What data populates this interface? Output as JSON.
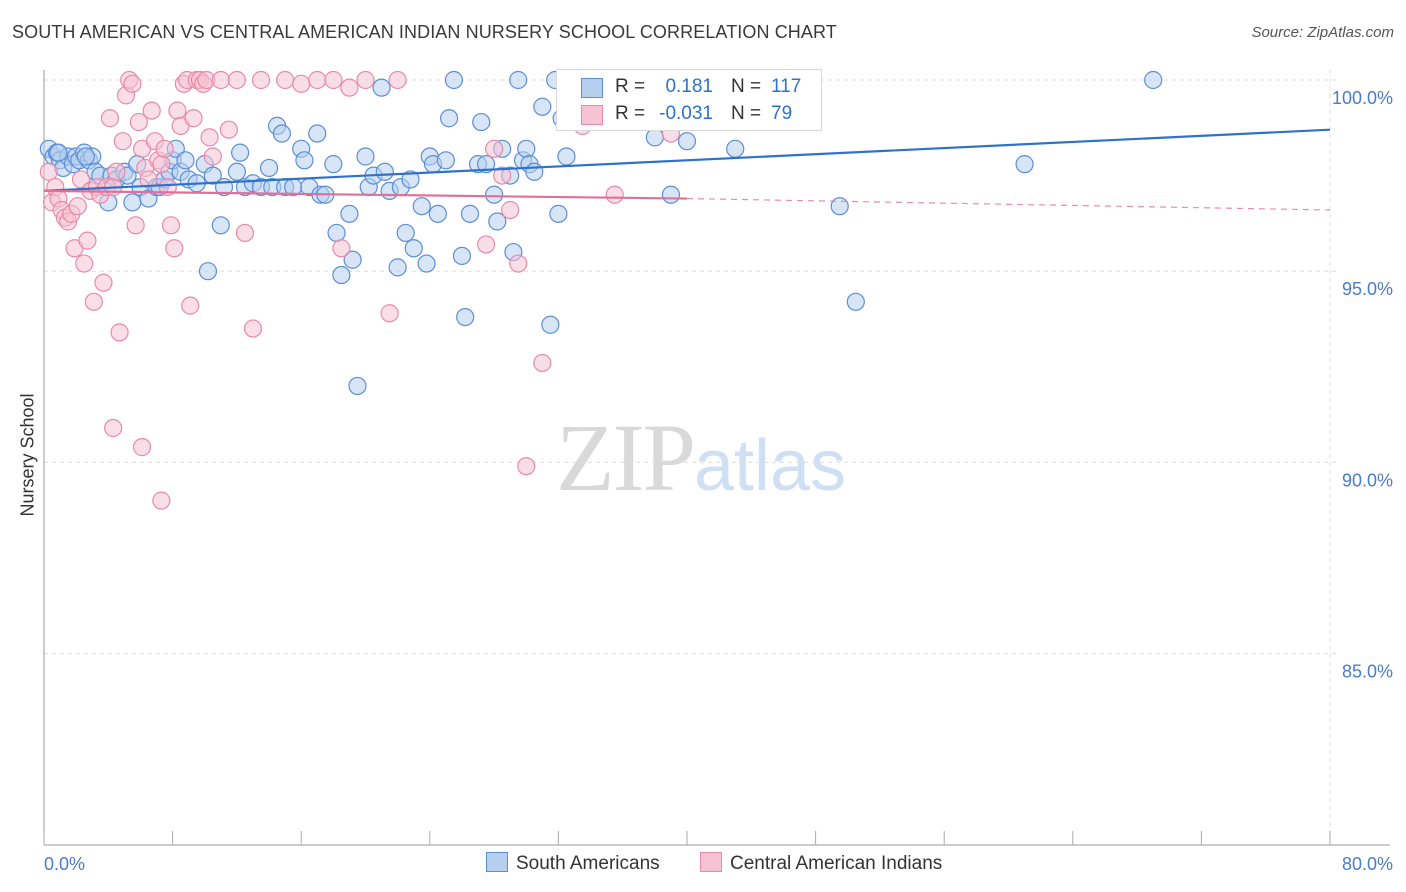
{
  "title": "SOUTH AMERICAN VS CENTRAL AMERICAN INDIAN NURSERY SCHOOL CORRELATION CHART",
  "source": "Source: ZipAtlas.com",
  "watermark": {
    "zip": "ZIP",
    "atlas": "atlas"
  },
  "colors": {
    "blue": "#5b8fd6",
    "blue_fill": "#b7cfee",
    "blue_line": "#2f72c9",
    "pink": "#e88aa8",
    "pink_fill": "#f5c3d3",
    "pink_line": "#e0709a",
    "axis_text": "#4a7cc9",
    "grid": "#dddddd"
  },
  "legend": {
    "rows": [
      {
        "r_label": "R =",
        "r_value": "0.181",
        "n_label": "N =",
        "n_value": "117"
      },
      {
        "r_label": "R =",
        "r_value": "-0.031",
        "n_label": "N =",
        "n_value": "79"
      }
    ]
  },
  "bottom_legend": [
    "South Americans",
    "Central American Indians"
  ],
  "chart_data": {
    "type": "scatter",
    "title": "SOUTH AMERICAN VS CENTRAL AMERICAN INDIAN NURSERY SCHOOL CORRELATION CHART",
    "ylabel": "Nursery School",
    "xlabel": "",
    "xlim": [
      0,
      80
    ],
    "ylim": [
      80,
      100.8
    ],
    "x_tick_labels": [
      "0.0%",
      "80.0%"
    ],
    "y_ticks": [
      85,
      90,
      95,
      100
    ],
    "y_tick_labels": [
      "85.0%",
      "90.0%",
      "95.0%",
      "100.0%"
    ],
    "grid": true,
    "series": [
      {
        "name": "South Americans",
        "color": "blue",
        "trend": {
          "x": [
            0,
            80
          ],
          "y": [
            97.1,
            98.7
          ]
        },
        "points": [
          [
            0.3,
            98.2
          ],
          [
            0.6,
            98.0
          ],
          [
            0.8,
            98.1
          ],
          [
            1.0,
            97.9
          ],
          [
            1.2,
            97.7
          ],
          [
            1.5,
            98.0
          ],
          [
            1.8,
            97.8
          ],
          [
            2.0,
            98.0
          ],
          [
            2.2,
            97.9
          ],
          [
            2.5,
            98.1
          ],
          [
            2.8,
            97.9
          ],
          [
            3.0,
            98.0
          ],
          [
            3.2,
            97.6
          ],
          [
            3.5,
            97.5
          ],
          [
            4.0,
            96.8
          ],
          [
            4.2,
            97.5
          ],
          [
            4.5,
            97.4
          ],
          [
            5.0,
            97.6
          ],
          [
            5.2,
            97.5
          ],
          [
            5.5,
            96.8
          ],
          [
            5.8,
            97.8
          ],
          [
            6.0,
            97.2
          ],
          [
            6.5,
            96.9
          ],
          [
            7.0,
            97.2
          ],
          [
            7.2,
            97.2
          ],
          [
            7.5,
            97.4
          ],
          [
            7.8,
            97.6
          ],
          [
            8.0,
            97.9
          ],
          [
            8.2,
            98.2
          ],
          [
            8.5,
            97.6
          ],
          [
            8.8,
            97.9
          ],
          [
            9.0,
            97.4
          ],
          [
            9.5,
            97.3
          ],
          [
            10.0,
            97.8
          ],
          [
            10.2,
            95.0
          ],
          [
            10.5,
            97.5
          ],
          [
            11.0,
            96.2
          ],
          [
            11.2,
            97.2
          ],
          [
            12.0,
            97.6
          ],
          [
            12.2,
            98.1
          ],
          [
            12.5,
            97.2
          ],
          [
            13.0,
            97.3
          ],
          [
            13.5,
            97.2
          ],
          [
            14.0,
            97.7
          ],
          [
            14.2,
            97.2
          ],
          [
            14.5,
            98.8
          ],
          [
            14.8,
            98.6
          ],
          [
            15.0,
            97.2
          ],
          [
            15.5,
            97.2
          ],
          [
            16.0,
            98.2
          ],
          [
            16.2,
            97.9
          ],
          [
            16.5,
            97.2
          ],
          [
            17.0,
            98.6
          ],
          [
            17.2,
            97.0
          ],
          [
            17.5,
            97.0
          ],
          [
            18.0,
            97.8
          ],
          [
            18.2,
            96.0
          ],
          [
            18.5,
            94.9
          ],
          [
            19.0,
            96.5
          ],
          [
            19.2,
            95.3
          ],
          [
            19.5,
            92.0
          ],
          [
            20.0,
            98.0
          ],
          [
            20.2,
            97.2
          ],
          [
            20.5,
            97.5
          ],
          [
            21.0,
            99.8
          ],
          [
            21.2,
            97.6
          ],
          [
            21.5,
            97.1
          ],
          [
            22.0,
            95.1
          ],
          [
            22.2,
            97.2
          ],
          [
            22.5,
            96.0
          ],
          [
            22.8,
            97.4
          ],
          [
            23.0,
            95.6
          ],
          [
            23.5,
            96.7
          ],
          [
            23.8,
            95.2
          ],
          [
            24.0,
            98.0
          ],
          [
            24.2,
            97.8
          ],
          [
            24.5,
            96.5
          ],
          [
            25.0,
            97.9
          ],
          [
            25.2,
            99.0
          ],
          [
            25.5,
            100.0
          ],
          [
            26.0,
            95.4
          ],
          [
            26.2,
            93.8
          ],
          [
            26.5,
            96.5
          ],
          [
            27.0,
            97.8
          ],
          [
            27.2,
            98.9
          ],
          [
            27.5,
            97.8
          ],
          [
            28.0,
            97.0
          ],
          [
            28.2,
            96.3
          ],
          [
            28.5,
            98.2
          ],
          [
            29.0,
            97.5
          ],
          [
            29.2,
            95.5
          ],
          [
            29.5,
            100.0
          ],
          [
            29.8,
            97.9
          ],
          [
            30.0,
            98.2
          ],
          [
            30.2,
            97.8
          ],
          [
            30.5,
            97.6
          ],
          [
            31.0,
            99.3
          ],
          [
            31.5,
            93.6
          ],
          [
            31.8,
            100.0
          ],
          [
            32.0,
            96.5
          ],
          [
            32.2,
            99.0
          ],
          [
            32.5,
            98.0
          ],
          [
            33.0,
            99.4
          ],
          [
            34.0,
            99.6
          ],
          [
            35.0,
            100.0
          ],
          [
            36.5,
            99.7
          ],
          [
            38.0,
            98.5
          ],
          [
            39.0,
            97.0
          ],
          [
            40.0,
            98.4
          ],
          [
            41.0,
            100.0
          ],
          [
            43.0,
            98.2
          ],
          [
            49.5,
            96.7
          ],
          [
            50.5,
            94.2
          ],
          [
            61.0,
            97.8
          ],
          [
            69.0,
            100.0
          ],
          [
            0.9,
            98.1
          ],
          [
            2.6,
            98.0
          ]
        ]
      },
      {
        "name": "Central American Indians",
        "color": "pink",
        "trend": {
          "x": [
            0,
            40,
            80
          ],
          "y": [
            97.1,
            96.9,
            96.6
          ]
        },
        "points": [
          [
            0.3,
            97.6
          ],
          [
            0.5,
            96.8
          ],
          [
            0.7,
            97.2
          ],
          [
            0.9,
            96.9
          ],
          [
            1.1,
            96.6
          ],
          [
            1.3,
            96.4
          ],
          [
            1.5,
            96.3
          ],
          [
            1.7,
            96.5
          ],
          [
            1.9,
            95.6
          ],
          [
            2.1,
            96.7
          ],
          [
            2.3,
            97.4
          ],
          [
            2.5,
            95.2
          ],
          [
            2.7,
            95.8
          ],
          [
            2.9,
            97.1
          ],
          [
            3.1,
            94.2
          ],
          [
            3.3,
            97.2
          ],
          [
            3.5,
            97.0
          ],
          [
            3.7,
            94.7
          ],
          [
            3.9,
            97.2
          ],
          [
            4.1,
            99.0
          ],
          [
            4.3,
            97.2
          ],
          [
            4.5,
            97.6
          ],
          [
            4.7,
            93.4
          ],
          [
            4.9,
            98.4
          ],
          [
            5.1,
            99.6
          ],
          [
            5.3,
            100.0
          ],
          [
            5.5,
            99.9
          ],
          [
            5.7,
            96.2
          ],
          [
            5.9,
            98.9
          ],
          [
            6.1,
            98.2
          ],
          [
            6.3,
            97.7
          ],
          [
            6.5,
            97.4
          ],
          [
            6.7,
            99.2
          ],
          [
            6.9,
            98.4
          ],
          [
            7.1,
            97.9
          ],
          [
            7.3,
            97.8
          ],
          [
            7.5,
            98.2
          ],
          [
            7.7,
            97.2
          ],
          [
            7.9,
            96.2
          ],
          [
            8.1,
            95.6
          ],
          [
            8.3,
            99.2
          ],
          [
            8.5,
            98.8
          ],
          [
            8.7,
            99.9
          ],
          [
            8.9,
            100.0
          ],
          [
            9.1,
            94.1
          ],
          [
            9.3,
            99.0
          ],
          [
            9.5,
            100.0
          ],
          [
            9.7,
            100.0
          ],
          [
            9.9,
            99.9
          ],
          [
            10.1,
            100.0
          ],
          [
            10.3,
            98.5
          ],
          [
            10.5,
            98.0
          ],
          [
            11.0,
            100.0
          ],
          [
            11.5,
            98.7
          ],
          [
            12.0,
            100.0
          ],
          [
            12.5,
            96.0
          ],
          [
            13.0,
            93.5
          ],
          [
            13.5,
            100.0
          ],
          [
            15.0,
            100.0
          ],
          [
            16.0,
            99.9
          ],
          [
            17.0,
            100.0
          ],
          [
            18.0,
            100.0
          ],
          [
            18.5,
            95.6
          ],
          [
            19.0,
            99.8
          ],
          [
            20.0,
            100.0
          ],
          [
            21.5,
            93.9
          ],
          [
            22.0,
            100.0
          ],
          [
            27.5,
            95.7
          ],
          [
            28.0,
            98.2
          ],
          [
            28.5,
            97.5
          ],
          [
            29.0,
            96.6
          ],
          [
            29.5,
            95.2
          ],
          [
            30.0,
            89.9
          ],
          [
            31.0,
            92.6
          ],
          [
            33.5,
            98.8
          ],
          [
            35.5,
            97.0
          ],
          [
            39.0,
            98.6
          ],
          [
            4.3,
            90.9
          ],
          [
            6.1,
            90.4
          ]
        ]
      },
      {
        "name": "",
        "color": "pink_low",
        "trend": null,
        "points": [
          [
            7.3,
            89.0
          ]
        ]
      }
    ]
  }
}
